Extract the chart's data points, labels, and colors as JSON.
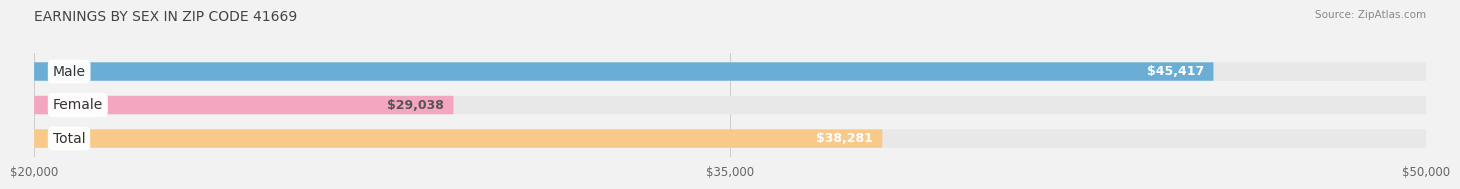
{
  "title": "EARNINGS BY SEX IN ZIP CODE 41669",
  "source": "Source: ZipAtlas.com",
  "categories": [
    "Male",
    "Female",
    "Total"
  ],
  "values": [
    45417,
    29038,
    38281
  ],
  "bar_colors": [
    "#6aaed6",
    "#f4a6c0",
    "#f9c98a"
  ],
  "value_labels": [
    "$45,417",
    "$29,038",
    "$38,281"
  ],
  "value_label_colors": [
    "white",
    "#555555",
    "white"
  ],
  "xmin": 20000,
  "xmax": 50000,
  "xticks": [
    20000,
    35000,
    50000
  ],
  "xtick_labels": [
    "$20,000",
    "$35,000",
    "$50,000"
  ],
  "bar_height": 0.55,
  "background_color": "#f2f2f2",
  "bar_bg_color": "#e8e8e8",
  "title_fontsize": 10,
  "label_fontsize": 10,
  "value_fontsize": 9
}
